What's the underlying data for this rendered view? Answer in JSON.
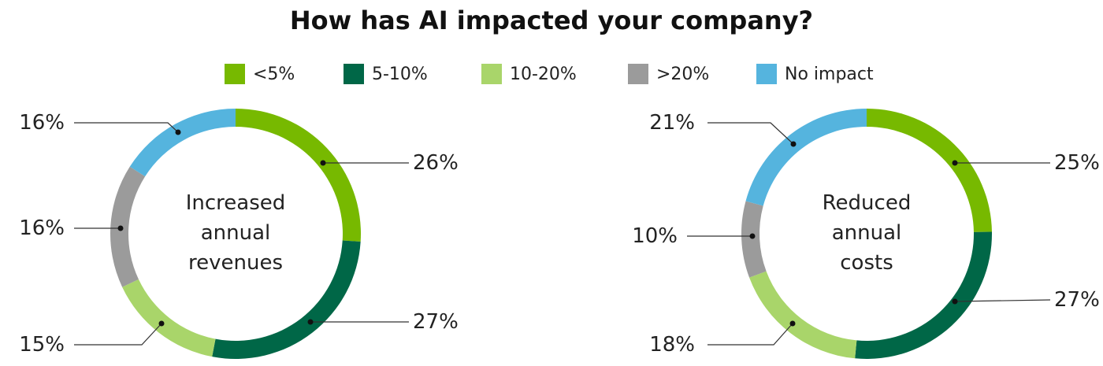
{
  "title": "How has AI impacted your company?",
  "legend": [
    {
      "label": "<5%",
      "color": "#77B900"
    },
    {
      "label": "5-10%",
      "color": "#006747"
    },
    {
      "label": "10-20%",
      "color": "#A9D56A"
    },
    {
      "label": ">20%",
      "color": "#9B9B9B"
    },
    {
      "label": "No impact",
      "color": "#55B4DE"
    }
  ],
  "chart_data": [
    {
      "type": "pie",
      "center_label": [
        "Increased",
        "annual",
        "revenues"
      ],
      "categories": [
        "<5%",
        "5-10%",
        "10-20%",
        ">20%",
        "No impact"
      ],
      "values": [
        26,
        27,
        15,
        16,
        16
      ],
      "value_labels": [
        "26%",
        "27%",
        "15%",
        "16%",
        "16%"
      ],
      "colors": [
        "#77B900",
        "#006747",
        "#A9D56A",
        "#9B9B9B",
        "#55B4DE"
      ]
    },
    {
      "type": "pie",
      "center_label": [
        "Reduced",
        "annual",
        "costs"
      ],
      "categories": [
        "<5%",
        "5-10%",
        "10-20%",
        ">20%",
        "No impact"
      ],
      "values": [
        25,
        27,
        18,
        10,
        21
      ],
      "value_labels": [
        "25%",
        "27%",
        "18%",
        "10%",
        "21%"
      ],
      "colors": [
        "#77B900",
        "#006747",
        "#A9D56A",
        "#9B9B9B",
        "#55B4DE"
      ]
    }
  ]
}
